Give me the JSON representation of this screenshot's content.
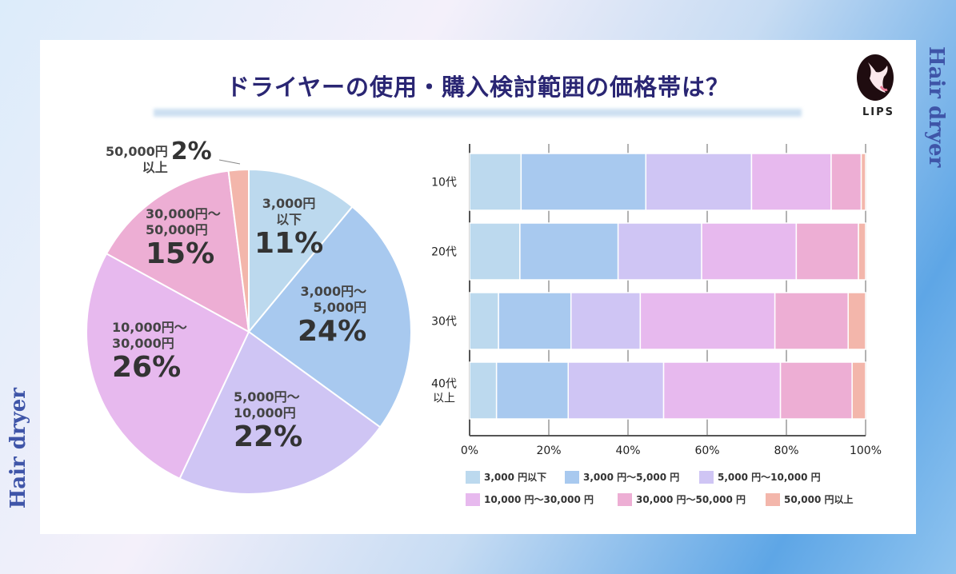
{
  "title": "ドライヤーの使用・購入検討範囲の価格帯は？",
  "side_text": "Hair dryer",
  "logo": "LIPS",
  "colors": [
    "#bcd9ee",
    "#a8c9ef",
    "#cfc5f4",
    "#e7b9ee",
    "#edaed4",
    "#f3b6ab"
  ],
  "chart_data": [
    {
      "type": "pie",
      "slices": [
        {
          "label_lines": [
            "3,000円",
            "以下"
          ],
          "value": 11,
          "pct_label": "11%"
        },
        {
          "label_lines": [
            "3,000円～",
            "5,000円"
          ],
          "value": 24,
          "pct_label": "24%"
        },
        {
          "label_lines": [
            "5,000円～",
            "10,000円"
          ],
          "value": 22,
          "pct_label": "22%"
        },
        {
          "label_lines": [
            "10,000円～",
            "30,000円"
          ],
          "value": 26,
          "pct_label": "26%"
        },
        {
          "label_lines": [
            "30,000円～",
            "50,000円"
          ],
          "value": 15,
          "pct_label": "15%"
        },
        {
          "label_lines": [
            "50,000円",
            "以上"
          ],
          "value": 2,
          "pct_label": "2%"
        }
      ]
    },
    {
      "type": "bar",
      "orientation": "horizontal",
      "stacked": true,
      "grid": true,
      "categories": [
        "10代",
        "20代",
        "30代",
        "40代\n以上"
      ],
      "xticks": [
        "0%",
        "20%",
        "40%",
        "60%",
        "80%",
        "100%"
      ],
      "xlim": [
        0,
        100
      ],
      "legend_position": "bottom",
      "series": [
        {
          "name": "3,000 円以下",
          "values": [
            13.0,
            12.7,
            7.3,
            6.8
          ]
        },
        {
          "name": "3,000 円～5,000 円",
          "values": [
            31.5,
            24.8,
            18.3,
            18.1
          ]
        },
        {
          "name": "5,000 円～10,000 円",
          "values": [
            26.7,
            21.1,
            17.5,
            24.1
          ]
        },
        {
          "name": "10,000 円～30,000 円",
          "values": [
            20.1,
            23.9,
            34.0,
            29.5
          ]
        },
        {
          "name": "30,000 円～50,000 円",
          "values": [
            7.6,
            15.7,
            18.5,
            18.1
          ]
        },
        {
          "name": "50,000 円以上",
          "values": [
            1.1,
            1.8,
            4.4,
            3.4
          ]
        }
      ]
    }
  ]
}
